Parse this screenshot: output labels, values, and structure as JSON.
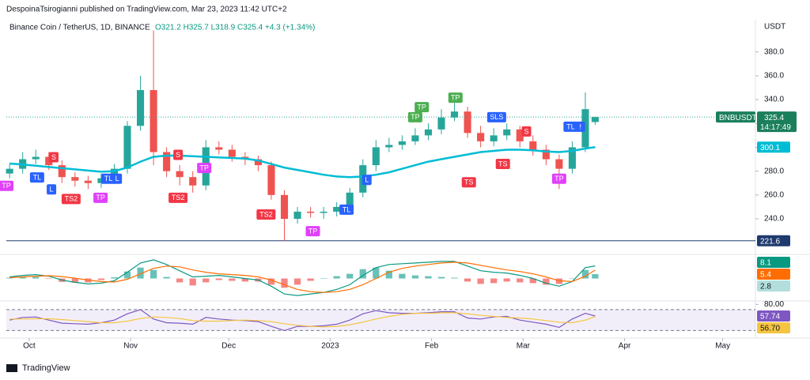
{
  "header": {
    "publisher": "DespoinaTsirogianni published on TradingView.com, Mar 23, 2023 11:42 UTC+2",
    "brand": "TradingView"
  },
  "chart_data": {
    "type": "candlestick",
    "symbol": "Binance Coin / TetherUS, 1D, BINANCE",
    "ohlc": "O321.2 H325.7 L318.9 C325.4 +4.3 (+1.34%)",
    "ticker": "BNBUSDT",
    "countdown": "14:17:49",
    "currency": "USDT",
    "x": [
      -6,
      -2,
      2,
      6,
      10,
      14,
      18,
      22,
      26,
      30,
      34,
      38,
      42,
      46,
      50,
      54,
      58,
      62,
      66,
      70,
      74,
      78,
      82,
      86,
      90,
      94,
      98,
      102,
      106,
      110,
      114,
      118,
      122,
      126,
      130,
      134,
      138,
      142,
      146,
      150,
      154,
      158,
      162,
      166,
      170,
      173
    ],
    "xlim": [
      -7,
      222
    ],
    "xticks": [
      {
        "value": 0,
        "label": "Oct"
      },
      {
        "value": 31,
        "label": "Nov"
      },
      {
        "value": 61,
        "label": "Dec"
      },
      {
        "value": 92,
        "label": "2023"
      },
      {
        "value": 123,
        "label": "Feb"
      },
      {
        "value": 151,
        "label": "Mar"
      },
      {
        "value": 182,
        "label": "Apr"
      },
      {
        "value": 212,
        "label": "May"
      }
    ],
    "ylim": [
      211.5,
      407
    ],
    "yticks": [
      {
        "value": 240,
        "label": "240.0"
      },
      {
        "value": 260,
        "label": "260.0"
      },
      {
        "value": 280,
        "label": "280.0"
      },
      {
        "value": 300,
        "label": "300.0"
      },
      {
        "value": 320,
        "label": "320.0"
      },
      {
        "value": 340,
        "label": "340.0"
      },
      {
        "value": 360,
        "label": "360.0"
      },
      {
        "value": 380,
        "label": "380.0"
      }
    ],
    "open": [
      278,
      282,
      290,
      292,
      285,
      275,
      272,
      270,
      274,
      282,
      318,
      348,
      296,
      280,
      275,
      268,
      300,
      298,
      292,
      290,
      285,
      260,
      240,
      246,
      245,
      246,
      250,
      262,
      285,
      300,
      302,
      305,
      310,
      315,
      325,
      330,
      312,
      305,
      310,
      315,
      305,
      298,
      290,
      282,
      300,
      321.2
    ],
    "high": [
      286,
      296,
      298,
      296,
      289,
      279,
      276,
      278,
      286,
      322,
      360,
      398,
      300,
      285,
      280,
      306,
      305,
      302,
      296,
      293,
      288,
      264,
      250,
      250,
      250,
      254,
      266,
      290,
      306,
      308,
      310,
      316,
      320,
      332,
      338,
      334,
      318,
      316,
      320,
      318,
      310,
      302,
      294,
      305,
      346,
      325.7
    ],
    "low": [
      274,
      278,
      286,
      281,
      270,
      267,
      265,
      266,
      270,
      278,
      314,
      285,
      275,
      268,
      262,
      264,
      294,
      288,
      285,
      280,
      256,
      221.6,
      236,
      241,
      240,
      242,
      246,
      258,
      280,
      296,
      298,
      302,
      306,
      311,
      322,
      308,
      300,
      301,
      306,
      300,
      293,
      285,
      265,
      278,
      296,
      318.9
    ],
    "close": [
      282,
      290,
      292,
      285,
      275,
      272,
      270,
      274,
      282,
      318,
      348,
      296,
      280,
      275,
      268,
      300,
      298,
      292,
      290,
      285,
      260,
      240,
      246,
      245,
      246,
      250,
      262,
      285,
      300,
      302,
      305,
      310,
      315,
      325,
      330,
      312,
      305,
      310,
      315,
      305,
      298,
      290,
      282,
      300,
      332,
      325.4
    ],
    "up_color": "#26a69a",
    "down_color": "#ef5350",
    "ma": {
      "color": "#00bcd4",
      "values": [
        286.4,
        285.5,
        284.5,
        283.5,
        282.5,
        281.5,
        280.5,
        279.5,
        280,
        283,
        288,
        292,
        293,
        293,
        292.5,
        292,
        291.5,
        291,
        290.5,
        289,
        286,
        283,
        281,
        279,
        277,
        275.5,
        275,
        275.5,
        277,
        279,
        282,
        285,
        288,
        290,
        292,
        294,
        296,
        297,
        298,
        298,
        297.5,
        296.5,
        296,
        297,
        299,
        300.1
      ]
    },
    "hline": {
      "value": 221.6,
      "color": "#1e3a6e"
    },
    "annotations": [
      {
        "text": "TP",
        "x": -7,
        "y": 268,
        "color": "#e040fb"
      },
      {
        "text": "TL",
        "x": 2.4,
        "y": 275,
        "color": "#2962ff"
      },
      {
        "text": "L",
        "x": 6.8,
        "y": 265,
        "color": "#2962ff"
      },
      {
        "text": "S",
        "x": 7.5,
        "y": 292,
        "color": "#f23645"
      },
      {
        "text": "TS2",
        "x": 12.8,
        "y": 257,
        "color": "#f23645"
      },
      {
        "text": "TP",
        "x": 21.8,
        "y": 258,
        "color": "#e040fb"
      },
      {
        "text": "TL",
        "x": 24.2,
        "y": 274,
        "color": "#2962ff"
      },
      {
        "text": "L",
        "x": 26.9,
        "y": 274,
        "color": "#2962ff"
      },
      {
        "text": "S",
        "x": 45.5,
        "y": 294,
        "color": "#f23645"
      },
      {
        "text": "TS2",
        "x": 45.5,
        "y": 258,
        "color": "#f23645"
      },
      {
        "text": "TP",
        "x": 53.5,
        "y": 283,
        "color": "#e040fb"
      },
      {
        "text": "TS2",
        "x": 72.4,
        "y": 244,
        "color": "#f23645"
      },
      {
        "text": "TP",
        "x": 86.7,
        "y": 230,
        "color": "#e040fb"
      },
      {
        "text": "TL",
        "x": 97,
        "y": 248,
        "color": "#2962ff"
      },
      {
        "text": "L",
        "x": 103.2,
        "y": 273,
        "color": "#2962ff"
      },
      {
        "text": "TP",
        "x": 118,
        "y": 325.6,
        "color": "#4caf50"
      },
      {
        "text": "TP",
        "x": 120,
        "y": 334,
        "color": "#4caf50"
      },
      {
        "text": "TP",
        "x": 130.3,
        "y": 342,
        "color": "#4caf50"
      },
      {
        "text": "TS",
        "x": 134.4,
        "y": 271,
        "color": "#f23645"
      },
      {
        "text": "SLS",
        "x": 142.9,
        "y": 325.6,
        "color": "#2962ff"
      },
      {
        "text": "TS",
        "x": 144.8,
        "y": 286.4,
        "color": "#f23645"
      },
      {
        "text": "S",
        "x": 152,
        "y": 313.6,
        "color": "#f23645"
      },
      {
        "text": "TP",
        "x": 162,
        "y": 274,
        "color": "#e040fb"
      },
      {
        "text": "TL",
        "x": 165.5,
        "y": 317.6,
        "color": "#2962ff"
      },
      {
        "text": "!",
        "x": 168.5,
        "y": 317.6,
        "color": "#2962ff"
      }
    ],
    "macd": {
      "ylim": [
        -14,
        14
      ],
      "series": [
        {
          "color": "#089981",
          "values": [
            1,
            2,
            2.5,
            1.5,
            -1,
            -2.5,
            -3.5,
            -3,
            -1.5,
            4,
            10,
            12,
            9,
            5,
            1,
            1.5,
            2,
            1,
            0,
            -1,
            -5,
            -10,
            -11,
            -10,
            -9,
            -7,
            -4,
            2,
            7,
            9,
            9.5,
            10,
            10.5,
            11,
            11,
            8,
            5,
            4,
            3.5,
            2,
            0,
            -3,
            -5,
            -2,
            7,
            8.1
          ]
        },
        {
          "color": "#ff6d00",
          "values": [
            0.5,
            1,
            1.5,
            1.8,
            1.2,
            0.2,
            -1,
            -2,
            -2.3,
            -0.5,
            3,
            6.5,
            8,
            7.5,
            5.5,
            4,
            3,
            2.5,
            2,
            1,
            -1,
            -4,
            -7,
            -8.5,
            -9,
            -8.5,
            -7,
            -4,
            0,
            4,
            6.5,
            8,
            9,
            10,
            10.5,
            10,
            8.5,
            7,
            5.5,
            4.5,
            3,
            1,
            -1.5,
            -2,
            1.5,
            5.4
          ]
        }
      ],
      "histogram": {
        "up_color": "#26a69a",
        "down_color": "#ef5350",
        "values": [
          0.5,
          1,
          1,
          -0.3,
          -2.2,
          -2.7,
          -2.5,
          -1,
          0.8,
          4.5,
          7,
          5.5,
          1,
          -2.5,
          -4.5,
          -2.5,
          -1,
          -1.5,
          -2,
          -2,
          -4,
          -6,
          -4,
          -1.5,
          0,
          1.5,
          3,
          6,
          7,
          5,
          3,
          2,
          1.5,
          1,
          0.5,
          -2,
          -3.5,
          -3,
          -2,
          -2.5,
          -3,
          -4,
          -3.5,
          0,
          5.5,
          2.8
        ]
      }
    },
    "rsi": {
      "ylim": [
        20,
        85
      ],
      "yticks": [
        {
          "value": 80,
          "label": "80.00"
        }
      ],
      "bands": [
        30,
        70
      ],
      "band_color": "#7e57c2",
      "series": [
        {
          "color": "#7e57c2",
          "values": [
            50,
            55,
            56,
            50,
            44,
            43,
            42,
            45,
            50,
            62,
            70,
            52,
            45,
            44,
            42,
            55,
            52,
            50,
            49,
            47,
            38,
            30,
            38,
            38,
            39,
            42,
            50,
            62,
            68,
            64,
            63,
            63,
            64,
            66,
            66,
            54,
            52,
            56,
            57,
            50,
            46,
            42,
            36,
            52,
            63,
            57.74
          ]
        },
        {
          "color": "#f5c542",
          "values": [
            52,
            52,
            52.5,
            52.5,
            51,
            49,
            47,
            45,
            45,
            48,
            53,
            56,
            55,
            53,
            49,
            48,
            48,
            49,
            50,
            49,
            47,
            43,
            40,
            38,
            37,
            38,
            41,
            46,
            52,
            57,
            61,
            63,
            63,
            64,
            64,
            62,
            59,
            57,
            55,
            54,
            52,
            49,
            46,
            45,
            50,
            56.7
          ],
          "value_labels": [
            null,
            null,
            null,
            null,
            null,
            null,
            null,
            null,
            null,
            null,
            null,
            null,
            null,
            null,
            null,
            null,
            null,
            null,
            null,
            null,
            null,
            null,
            null,
            null,
            null,
            null,
            null,
            null,
            null,
            null,
            null,
            null,
            null,
            null,
            null,
            null,
            null,
            null,
            null,
            null,
            null,
            null,
            null,
            null,
            null,
            "56.70"
          ]
        }
      ]
    }
  }
}
